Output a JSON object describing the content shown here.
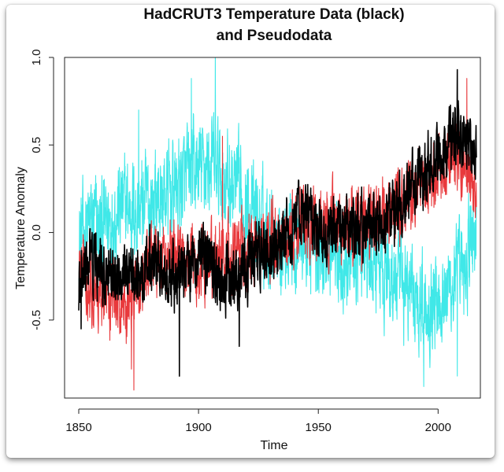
{
  "chart_data": {
    "type": "line",
    "title": [
      "HadCRUT3 Temperature Data (black)",
      "and Pseudodata"
    ],
    "xlabel": "Time",
    "ylabel": "Temperature Anomaly",
    "xlim": [
      1850,
      2016
    ],
    "ylim": [
      -0.95,
      1.0
    ],
    "x_ticks": [
      1850,
      1900,
      1950,
      2000
    ],
    "y_ticks": [
      -0.5,
      0.0,
      0.5,
      1.0
    ],
    "y_tick_labels": [
      "-0.5",
      "0.0",
      "0.5",
      "1.0"
    ],
    "series": [
      {
        "name": "Pseudodata (cyan)",
        "color": "#40e8e8",
        "anchors": [
          [
            1850,
            -0.05
          ],
          [
            1855,
            0.05
          ],
          [
            1860,
            0.02
          ],
          [
            1865,
            0.12
          ],
          [
            1870,
            0.15
          ],
          [
            1875,
            0.12
          ],
          [
            1880,
            0.18
          ],
          [
            1885,
            0.2
          ],
          [
            1890,
            0.25
          ],
          [
            1895,
            0.3
          ],
          [
            1900,
            0.35
          ],
          [
            1905,
            0.4
          ],
          [
            1910,
            0.32
          ],
          [
            1915,
            0.25
          ],
          [
            1920,
            0.15
          ],
          [
            1925,
            0.05
          ],
          [
            1930,
            0.0
          ],
          [
            1935,
            -0.05
          ],
          [
            1940,
            -0.02
          ],
          [
            1945,
            -0.05
          ],
          [
            1950,
            -0.1
          ],
          [
            1955,
            -0.12
          ],
          [
            1960,
            -0.15
          ],
          [
            1965,
            -0.1
          ],
          [
            1970,
            -0.15
          ],
          [
            1975,
            -0.2
          ],
          [
            1980,
            -0.25
          ],
          [
            1985,
            -0.3
          ],
          [
            1990,
            -0.35
          ],
          [
            1995,
            -0.4
          ],
          [
            2000,
            -0.35
          ],
          [
            2005,
            -0.3
          ],
          [
            2010,
            -0.25
          ],
          [
            2016,
            0.05
          ]
        ],
        "noise": 0.22,
        "peaks": [
          [
            1907,
            1.0
          ],
          [
            1897,
            0.88
          ],
          [
            1875,
            0.7
          ],
          [
            1994,
            -0.88
          ],
          [
            2008,
            -0.82
          ]
        ]
      },
      {
        "name": "Pseudodata (red)",
        "color": "#e8393c",
        "anchors": [
          [
            1850,
            -0.2
          ],
          [
            1860,
            -0.35
          ],
          [
            1870,
            -0.4
          ],
          [
            1875,
            -0.3
          ],
          [
            1880,
            -0.2
          ],
          [
            1890,
            -0.15
          ],
          [
            1900,
            -0.2
          ],
          [
            1910,
            -0.15
          ],
          [
            1920,
            -0.1
          ],
          [
            1930,
            -0.05
          ],
          [
            1940,
            0.0
          ],
          [
            1950,
            0.05
          ],
          [
            1960,
            0.05
          ],
          [
            1970,
            0.05
          ],
          [
            1980,
            0.1
          ],
          [
            1990,
            0.25
          ],
          [
            2000,
            0.35
          ],
          [
            2010,
            0.45
          ],
          [
            2016,
            0.3
          ]
        ],
        "noise": 0.16,
        "peaks": [
          [
            1873,
            -0.9
          ],
          [
            1872,
            -0.78
          ],
          [
            2012,
            0.88
          ],
          [
            1910,
            0.55
          ]
        ]
      },
      {
        "name": "HadCRUT3 (black)",
        "color": "#000000",
        "anchors": [
          [
            1850,
            -0.35
          ],
          [
            1855,
            -0.15
          ],
          [
            1860,
            -0.25
          ],
          [
            1865,
            -0.3
          ],
          [
            1870,
            -0.2
          ],
          [
            1875,
            -0.25
          ],
          [
            1880,
            -0.15
          ],
          [
            1885,
            -0.2
          ],
          [
            1890,
            -0.25
          ],
          [
            1895,
            -0.2
          ],
          [
            1900,
            -0.15
          ],
          [
            1905,
            -0.2
          ],
          [
            1910,
            -0.3
          ],
          [
            1915,
            -0.25
          ],
          [
            1920,
            -0.2
          ],
          [
            1925,
            -0.15
          ],
          [
            1930,
            -0.1
          ],
          [
            1935,
            -0.05
          ],
          [
            1940,
            0.05
          ],
          [
            1945,
            0.1
          ],
          [
            1950,
            0.0
          ],
          [
            1955,
            0.0
          ],
          [
            1960,
            0.05
          ],
          [
            1965,
            0.05
          ],
          [
            1970,
            0.05
          ],
          [
            1975,
            0.0
          ],
          [
            1980,
            0.1
          ],
          [
            1985,
            0.15
          ],
          [
            1990,
            0.3
          ],
          [
            1995,
            0.35
          ],
          [
            2000,
            0.45
          ],
          [
            2005,
            0.55
          ],
          [
            2010,
            0.55
          ],
          [
            2016,
            0.45
          ]
        ],
        "noise": 0.14,
        "peaks": [
          [
            1892,
            -0.82
          ],
          [
            2008,
            0.93
          ],
          [
            1851,
            -0.55
          ],
          [
            1917,
            -0.65
          ]
        ]
      }
    ]
  }
}
